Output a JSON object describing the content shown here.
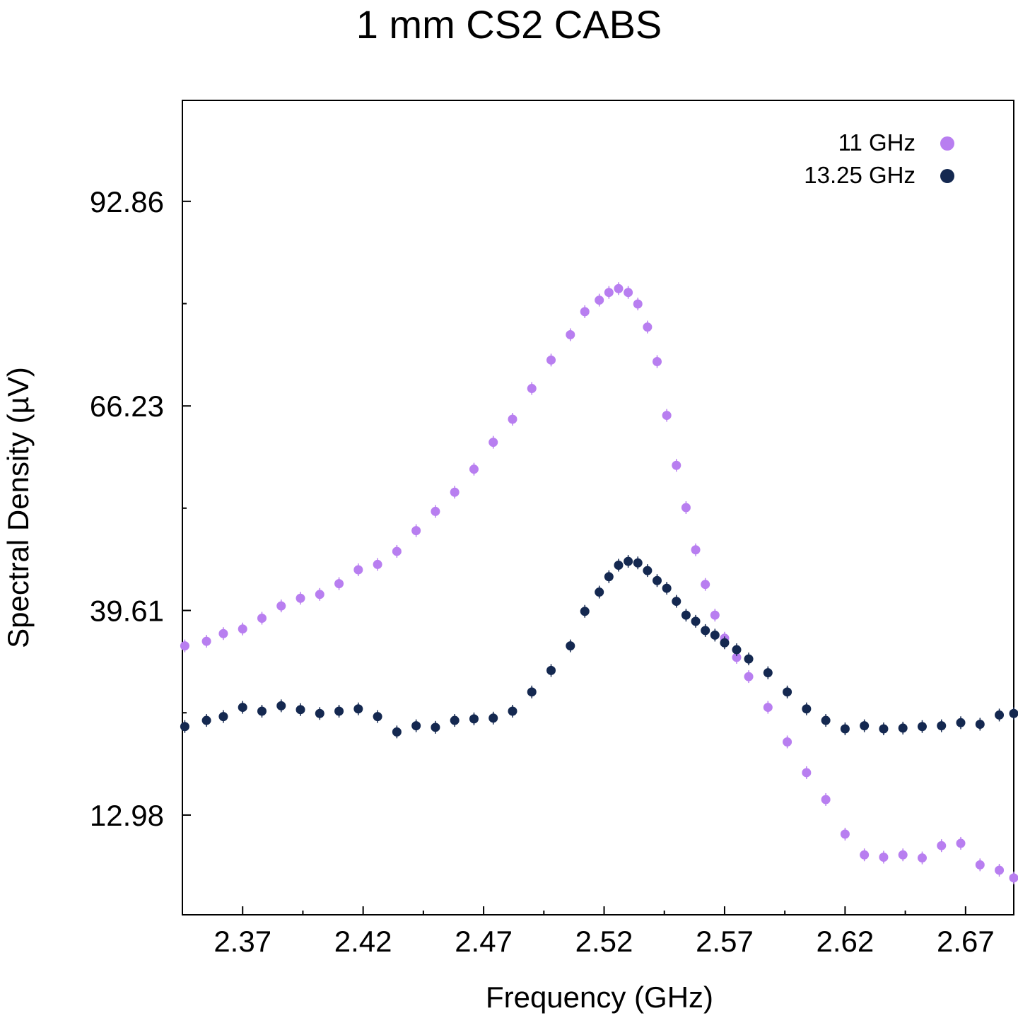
{
  "chart_data": {
    "type": "scatter",
    "title": "1 mm CS2 CABS",
    "xlabel": "Frequency (GHz)",
    "ylabel": "Spectral Density (µV)",
    "xlim": [
      2.345,
      2.69
    ],
    "ylim": [
      0,
      106
    ],
    "xticks": [
      "2.37",
      "2.42",
      "2.47",
      "2.52",
      "2.57",
      "2.62",
      "2.67"
    ],
    "xtick_values": [
      2.37,
      2.42,
      2.47,
      2.52,
      2.57,
      2.62,
      2.67
    ],
    "yticks": [
      "12.98",
      "39.61",
      "66.23",
      "92.86"
    ],
    "ytick_values": [
      12.98,
      39.61,
      66.23,
      92.86
    ],
    "grid": false,
    "legend_position": "top-right",
    "series": [
      {
        "name": "11 GHz",
        "color": "#b87ef0",
        "x": [
          2.346,
          2.355,
          2.362,
          2.37,
          2.378,
          2.386,
          2.394,
          2.402,
          2.41,
          2.418,
          2.426,
          2.434,
          2.442,
          2.45,
          2.458,
          2.466,
          2.474,
          2.482,
          2.49,
          2.498,
          2.506,
          2.512,
          2.518,
          2.522,
          2.526,
          2.53,
          2.534,
          2.538,
          2.542,
          2.546,
          2.55,
          2.554,
          2.558,
          2.562,
          2.566,
          2.57,
          2.575,
          2.58,
          2.588,
          2.596,
          2.604,
          2.612,
          2.62,
          2.628,
          2.636,
          2.644,
          2.652,
          2.66,
          2.668,
          2.676,
          2.684,
          2.69
        ],
        "y": [
          35.0,
          35.6,
          36.6,
          37.2,
          38.6,
          40.2,
          41.2,
          41.7,
          43.1,
          44.9,
          45.6,
          47.3,
          50.0,
          52.5,
          55.0,
          58.0,
          61.5,
          64.5,
          68.5,
          72.2,
          75.5,
          78.5,
          80.0,
          81.0,
          81.5,
          81.0,
          79.5,
          76.5,
          72.0,
          65.0,
          58.5,
          53.0,
          47.5,
          43.0,
          39.0,
          36.0,
          33.5,
          31.0,
          27.0,
          22.5,
          18.5,
          15.0,
          10.5,
          7.8,
          7.5,
          7.8,
          7.4,
          9.0,
          9.3,
          6.5,
          5.8,
          4.8
        ]
      },
      {
        "name": "13.25 GHz",
        "color": "#142850",
        "x": [
          2.346,
          2.355,
          2.362,
          2.37,
          2.378,
          2.386,
          2.394,
          2.402,
          2.41,
          2.418,
          2.426,
          2.434,
          2.442,
          2.45,
          2.458,
          2.466,
          2.474,
          2.482,
          2.49,
          2.498,
          2.506,
          2.512,
          2.518,
          2.522,
          2.526,
          2.53,
          2.534,
          2.538,
          2.542,
          2.546,
          2.55,
          2.554,
          2.558,
          2.562,
          2.566,
          2.57,
          2.575,
          2.58,
          2.588,
          2.596,
          2.604,
          2.612,
          2.62,
          2.628,
          2.636,
          2.644,
          2.652,
          2.66,
          2.668,
          2.676,
          2.684,
          2.69
        ],
        "y": [
          24.5,
          25.3,
          25.8,
          27.0,
          26.5,
          27.2,
          26.7,
          26.2,
          26.5,
          26.8,
          25.8,
          23.8,
          24.6,
          24.4,
          25.3,
          25.5,
          25.6,
          26.5,
          29.0,
          31.8,
          35.0,
          39.5,
          42.0,
          44.0,
          45.5,
          46.0,
          45.8,
          44.8,
          43.5,
          42.5,
          40.8,
          39.0,
          38.2,
          37.0,
          36.4,
          35.4,
          34.5,
          33.3,
          31.5,
          29.0,
          26.8,
          25.3,
          24.2,
          24.6,
          24.2,
          24.3,
          24.5,
          24.6,
          25.0,
          24.8,
          26.0,
          26.2
        ]
      }
    ]
  }
}
